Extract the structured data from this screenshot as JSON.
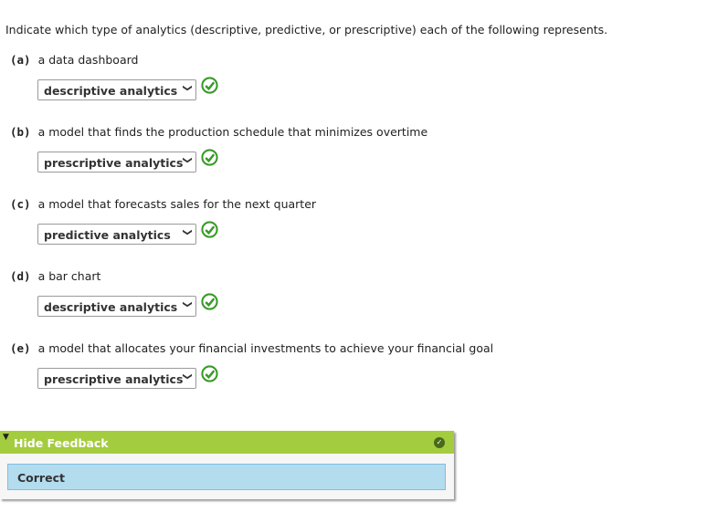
{
  "intro": "Indicate which type of analytics (descriptive, predictive, or prescriptive) each of the following represents.",
  "questions": [
    {
      "label": "(a)",
      "text": "a data dashboard",
      "answer": "descriptive analytics",
      "status": "correct"
    },
    {
      "label": "(b)",
      "text": "a model that finds the production schedule that minimizes overtime",
      "answer": "prescriptive analytics",
      "status": "correct"
    },
    {
      "label": "(c)",
      "text": "a model that forecasts sales for the next quarter",
      "answer": "predictive analytics",
      "status": "correct"
    },
    {
      "label": "(d)",
      "text": "a bar chart",
      "answer": "descriptive analytics",
      "status": "correct"
    },
    {
      "label": "(e)",
      "text": "a model that allocates your financial investments to achieve your financial goal",
      "answer": "prescriptive analytics",
      "status": "correct"
    }
  ],
  "feedback": {
    "toggle_label": "Hide Feedback",
    "result": "Correct",
    "header_color": "#a4cc3f",
    "result_color": "#b3dcee"
  }
}
